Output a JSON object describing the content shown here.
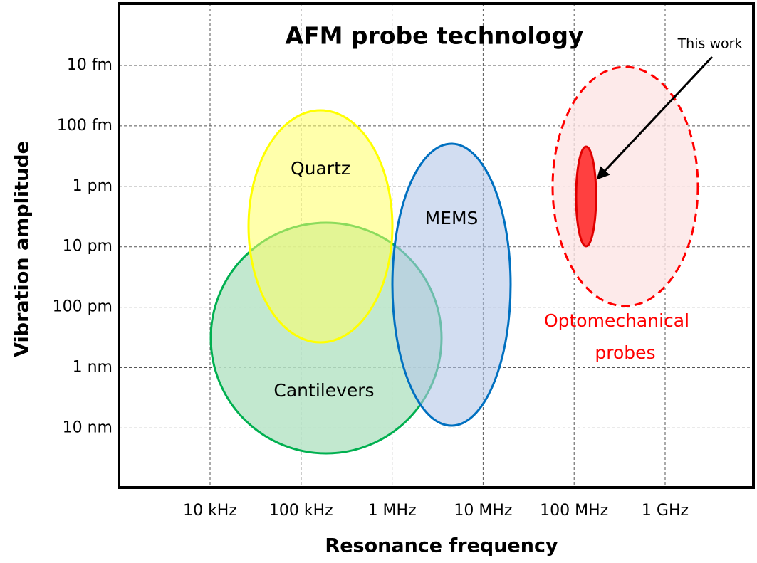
{
  "title": "AFM probe technology",
  "x_axis": {
    "label": "Resonance frequency",
    "ticks": [
      "10 kHz",
      "100 kHz",
      "1 MHz",
      "10 MHz",
      "100 MHz",
      "1 GHz"
    ]
  },
  "y_axis": {
    "label": "Vibration amplitude",
    "ticks": [
      "10 fm",
      "100 fm",
      "1 pm",
      "10 pm",
      "100 pm",
      "1 nm",
      "10 nm"
    ]
  },
  "regions": [
    "Quartz",
    "MEMS",
    "Cantilevers",
    "Optomechanical",
    "probes"
  ],
  "annotation": "This work"
}
